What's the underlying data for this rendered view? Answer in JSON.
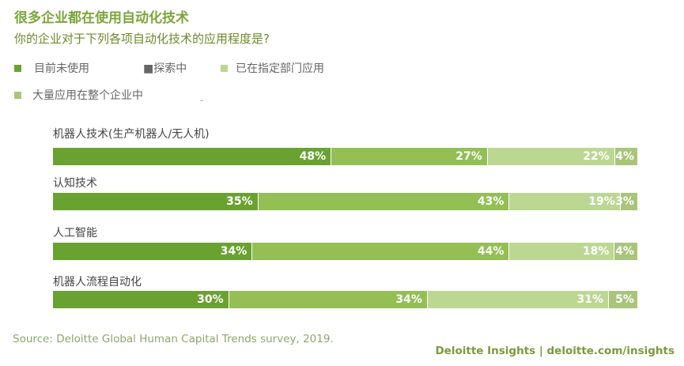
{
  "title": "很多企业都在使用自动化技术",
  "subtitle": "你的企业对于下列各项自动化技术的应用程度是?",
  "colors": {
    "not_using": "#6aa232",
    "exploring": "#93bf55",
    "departments": "#bcd792",
    "enterprise": "#a8c57a"
  },
  "chart_data": {
    "type": "bar",
    "orientation": "horizontal-stacked",
    "categories": [
      "机器人技术(生产机器人/无人机)",
      "认知技术",
      "人工智能",
      "机器人流程自动化"
    ],
    "series": [
      {
        "name": "目前未使用",
        "values": [
          48,
          35,
          34,
          30
        ]
      },
      {
        "name": "探索中",
        "values": [
          27,
          43,
          44,
          34
        ]
      },
      {
        "name": "已在指定部门应用",
        "values": [
          22,
          19,
          18,
          31
        ]
      },
      {
        "name": "大量应用在整个企业中",
        "values": [
          4,
          3,
          4,
          5
        ]
      }
    ],
    "value_suffix": "%",
    "legend": "top-left"
  },
  "legend": [
    {
      "label": "目前未使用"
    },
    {
      "label": "■探索中"
    },
    {
      "label": "已在指定部门应用"
    },
    {
      "label": "大量应用在整个企业中"
    }
  ],
  "source": "Source: Deloitte Global Human Capital Trends survey, 2019.",
  "footer": "Deloitte Insights | deloitte.com/insights"
}
